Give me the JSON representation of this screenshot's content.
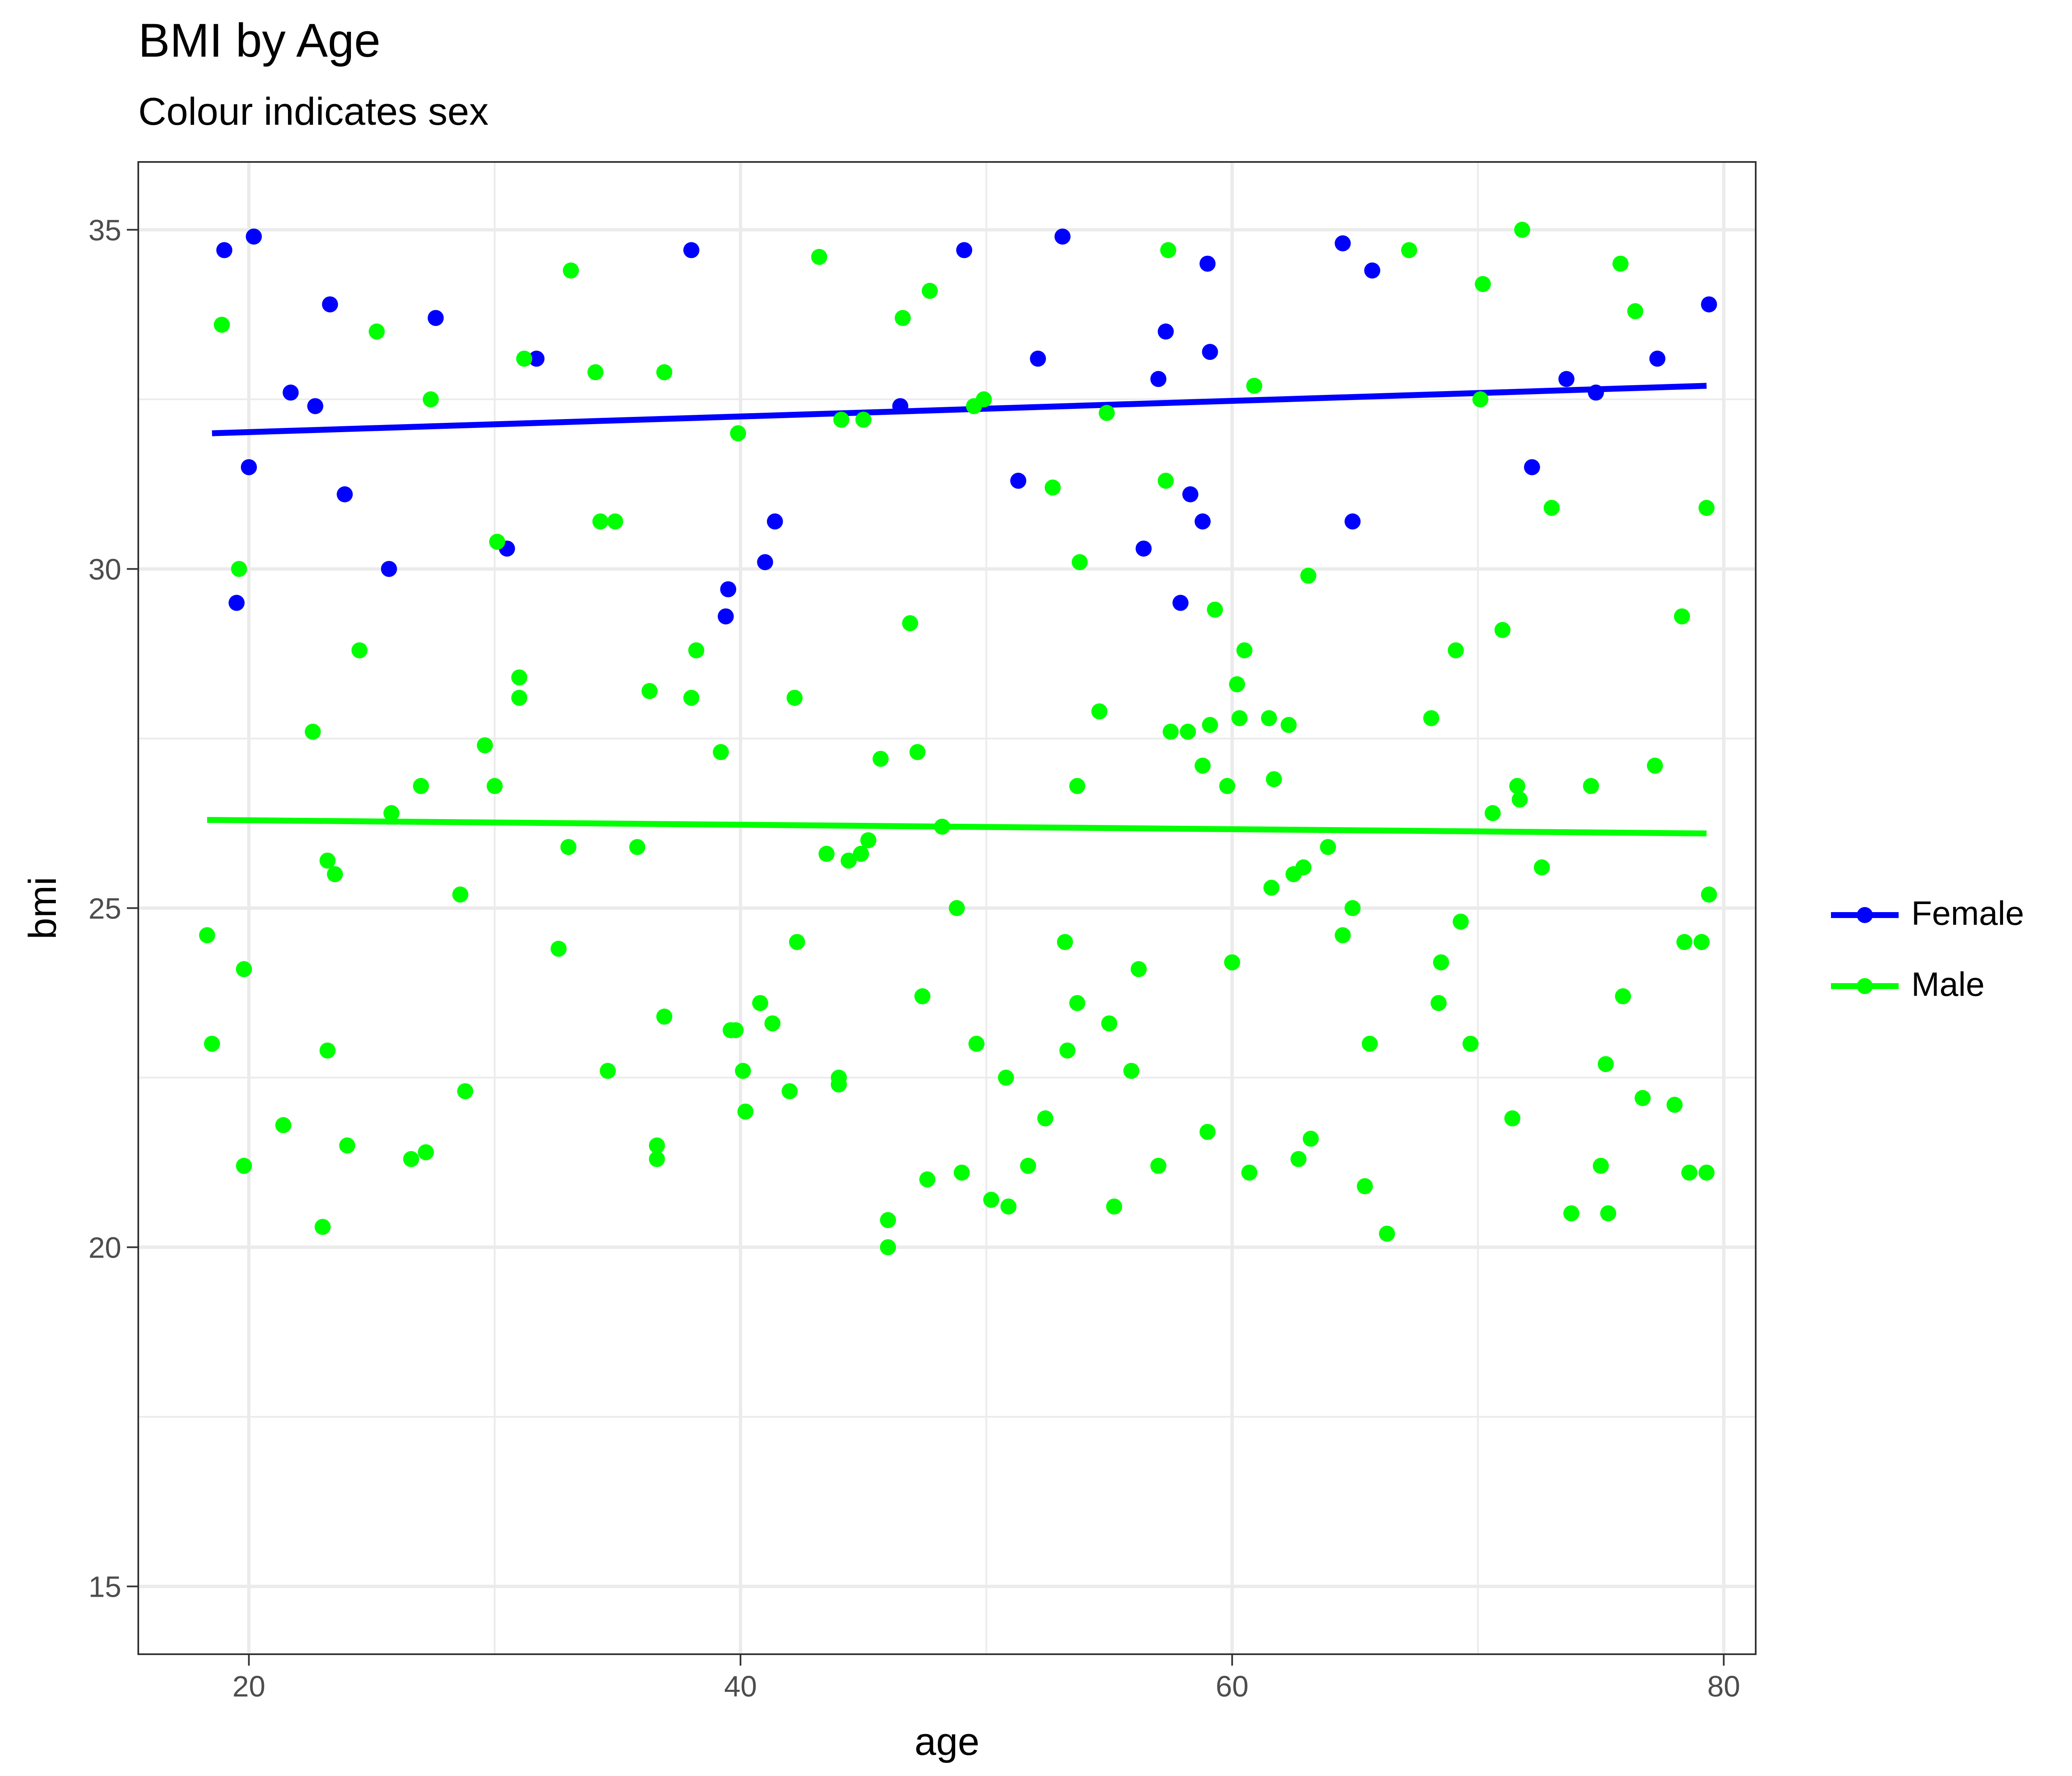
{
  "chart_data": {
    "type": "scatter",
    "title": "BMI by Age",
    "subtitle": "Colour indicates sex",
    "xlabel": "age",
    "ylabel": "bmi",
    "xlim": [
      15.5,
      81.3
    ],
    "ylim": [
      14.0,
      36.0
    ],
    "x_ticks": [
      20,
      40,
      60,
      80
    ],
    "y_ticks": [
      15,
      20,
      25,
      30,
      35
    ],
    "grid": true,
    "legend_position": "right",
    "series": [
      {
        "name": "Female",
        "color": "#0000ff",
        "trend": {
          "x": [
            18.5,
            79.3
          ],
          "y": [
            32.0,
            32.7
          ]
        },
        "points": [
          [
            19.0,
            34.7
          ],
          [
            20.2,
            34.9
          ],
          [
            20.0,
            31.5
          ],
          [
            19.5,
            29.5
          ],
          [
            21.7,
            32.6
          ],
          [
            22.7,
            32.4
          ],
          [
            23.3,
            33.9
          ],
          [
            23.9,
            31.1
          ],
          [
            25.7,
            30.0
          ],
          [
            27.6,
            33.7
          ],
          [
            30.5,
            30.3
          ],
          [
            31.7,
            33.1
          ],
          [
            38.0,
            34.7
          ],
          [
            39.5,
            29.7
          ],
          [
            39.4,
            29.3
          ],
          [
            41.0,
            30.1
          ],
          [
            41.4,
            30.7
          ],
          [
            46.5,
            32.4
          ],
          [
            49.1,
            34.7
          ],
          [
            51.3,
            31.3
          ],
          [
            52.1,
            33.1
          ],
          [
            53.1,
            34.9
          ],
          [
            56.4,
            30.3
          ],
          [
            57.0,
            32.8
          ],
          [
            57.3,
            33.5
          ],
          [
            57.9,
            29.5
          ],
          [
            58.3,
            31.1
          ],
          [
            58.8,
            30.7
          ],
          [
            59.0,
            34.5
          ],
          [
            59.1,
            33.2
          ],
          [
            64.5,
            34.8
          ],
          [
            64.9,
            30.7
          ],
          [
            65.7,
            34.4
          ],
          [
            72.2,
            31.5
          ],
          [
            73.6,
            32.8
          ],
          [
            74.8,
            32.6
          ],
          [
            77.3,
            33.1
          ],
          [
            79.4,
            33.9
          ]
        ]
      },
      {
        "name": "Male",
        "color": "#00ff00",
        "trend": {
          "x": [
            18.3,
            79.3
          ],
          "y": [
            26.3,
            26.1
          ]
        },
        "points": [
          [
            18.3,
            24.6
          ],
          [
            18.5,
            23.0
          ],
          [
            18.9,
            33.6
          ],
          [
            19.6,
            30.0
          ],
          [
            19.8,
            24.1
          ],
          [
            19.8,
            21.2
          ],
          [
            21.4,
            21.8
          ],
          [
            22.6,
            27.6
          ],
          [
            23.0,
            20.3
          ],
          [
            23.2,
            25.7
          ],
          [
            23.2,
            22.9
          ],
          [
            23.5,
            25.5
          ],
          [
            24.0,
            21.5
          ],
          [
            24.5,
            28.8
          ],
          [
            25.2,
            33.5
          ],
          [
            25.8,
            26.4
          ],
          [
            26.6,
            21.3
          ],
          [
            27.0,
            26.8
          ],
          [
            27.2,
            21.4
          ],
          [
            27.4,
            32.5
          ],
          [
            28.6,
            25.2
          ],
          [
            28.8,
            22.3
          ],
          [
            29.6,
            27.4
          ],
          [
            30.0,
            26.8
          ],
          [
            30.1,
            30.4
          ],
          [
            31.0,
            28.4
          ],
          [
            31.0,
            28.1
          ],
          [
            31.2,
            33.1
          ],
          [
            32.6,
            24.4
          ],
          [
            33.0,
            25.9
          ],
          [
            33.1,
            34.4
          ],
          [
            34.1,
            32.9
          ],
          [
            34.3,
            30.7
          ],
          [
            34.6,
            22.6
          ],
          [
            34.9,
            30.7
          ],
          [
            35.8,
            25.9
          ],
          [
            36.3,
            28.2
          ],
          [
            36.6,
            21.5
          ],
          [
            36.6,
            21.3
          ],
          [
            36.9,
            23.4
          ],
          [
            36.9,
            32.9
          ],
          [
            38.0,
            28.1
          ],
          [
            38.2,
            28.8
          ],
          [
            39.2,
            27.3
          ],
          [
            39.6,
            23.2
          ],
          [
            39.8,
            23.2
          ],
          [
            39.9,
            32.0
          ],
          [
            40.1,
            22.6
          ],
          [
            40.2,
            22.0
          ],
          [
            40.8,
            23.6
          ],
          [
            41.3,
            23.3
          ],
          [
            42.0,
            22.3
          ],
          [
            42.2,
            28.1
          ],
          [
            42.3,
            24.5
          ],
          [
            43.2,
            34.6
          ],
          [
            43.5,
            25.8
          ],
          [
            44.0,
            22.5
          ],
          [
            44.0,
            22.4
          ],
          [
            44.1,
            32.2
          ],
          [
            44.4,
            25.7
          ],
          [
            44.9,
            25.8
          ],
          [
            45.0,
            32.2
          ],
          [
            45.2,
            26.0
          ],
          [
            45.7,
            27.2
          ],
          [
            46.0,
            20.4
          ],
          [
            46.0,
            20.0
          ],
          [
            46.6,
            33.7
          ],
          [
            46.9,
            29.2
          ],
          [
            47.2,
            27.3
          ],
          [
            47.4,
            23.7
          ],
          [
            47.6,
            21.0
          ],
          [
            47.7,
            34.1
          ],
          [
            48.2,
            26.2
          ],
          [
            48.8,
            25.0
          ],
          [
            49.0,
            21.1
          ],
          [
            49.5,
            32.4
          ],
          [
            49.6,
            23.0
          ],
          [
            49.9,
            32.5
          ],
          [
            50.2,
            20.7
          ],
          [
            50.8,
            22.5
          ],
          [
            50.9,
            20.6
          ],
          [
            51.7,
            21.2
          ],
          [
            52.4,
            21.9
          ],
          [
            52.7,
            31.2
          ],
          [
            53.2,
            24.5
          ],
          [
            53.3,
            22.9
          ],
          [
            53.7,
            23.6
          ],
          [
            53.7,
            26.8
          ],
          [
            53.8,
            30.1
          ],
          [
            54.6,
            27.9
          ],
          [
            54.9,
            32.3
          ],
          [
            55.0,
            23.3
          ],
          [
            55.2,
            20.6
          ],
          [
            55.9,
            22.6
          ],
          [
            56.2,
            24.1
          ],
          [
            57.0,
            21.2
          ],
          [
            57.3,
            31.3
          ],
          [
            57.4,
            34.7
          ],
          [
            57.5,
            27.6
          ],
          [
            58.2,
            27.6
          ],
          [
            58.8,
            27.1
          ],
          [
            59.0,
            21.7
          ],
          [
            59.1,
            27.7
          ],
          [
            59.3,
            29.4
          ],
          [
            59.8,
            26.8
          ],
          [
            60.0,
            24.2
          ],
          [
            60.2,
            28.3
          ],
          [
            60.3,
            27.8
          ],
          [
            60.5,
            28.8
          ],
          [
            60.7,
            21.1
          ],
          [
            60.9,
            32.7
          ],
          [
            61.5,
            27.8
          ],
          [
            61.6,
            25.3
          ],
          [
            61.7,
            26.9
          ],
          [
            62.3,
            27.7
          ],
          [
            62.5,
            25.5
          ],
          [
            62.7,
            21.3
          ],
          [
            62.9,
            25.6
          ],
          [
            63.1,
            29.9
          ],
          [
            63.2,
            21.6
          ],
          [
            63.9,
            25.9
          ],
          [
            64.5,
            24.6
          ],
          [
            64.9,
            25.0
          ],
          [
            65.4,
            20.9
          ],
          [
            65.6,
            23.0
          ],
          [
            66.3,
            20.2
          ],
          [
            67.2,
            34.7
          ],
          [
            68.1,
            27.8
          ],
          [
            68.5,
            24.2
          ],
          [
            68.4,
            23.6
          ],
          [
            69.1,
            28.8
          ],
          [
            69.3,
            24.8
          ],
          [
            69.7,
            23.0
          ],
          [
            70.1,
            32.5
          ],
          [
            70.2,
            34.2
          ],
          [
            70.6,
            26.4
          ],
          [
            71.0,
            29.1
          ],
          [
            71.4,
            21.9
          ],
          [
            71.6,
            26.8
          ],
          [
            71.7,
            26.6
          ],
          [
            71.8,
            35.0
          ],
          [
            72.6,
            25.6
          ],
          [
            73.0,
            30.9
          ],
          [
            73.8,
            20.5
          ],
          [
            74.6,
            26.8
          ],
          [
            75.0,
            21.2
          ],
          [
            75.2,
            22.7
          ],
          [
            75.3,
            20.5
          ],
          [
            75.8,
            34.5
          ],
          [
            75.9,
            23.7
          ],
          [
            76.4,
            33.8
          ],
          [
            76.7,
            22.2
          ],
          [
            77.2,
            27.1
          ],
          [
            78.0,
            22.1
          ],
          [
            78.3,
            29.3
          ],
          [
            78.4,
            24.5
          ],
          [
            78.6,
            21.1
          ],
          [
            79.1,
            24.5
          ],
          [
            79.3,
            21.1
          ],
          [
            79.3,
            30.9
          ],
          [
            79.4,
            25.2
          ]
        ]
      }
    ]
  }
}
